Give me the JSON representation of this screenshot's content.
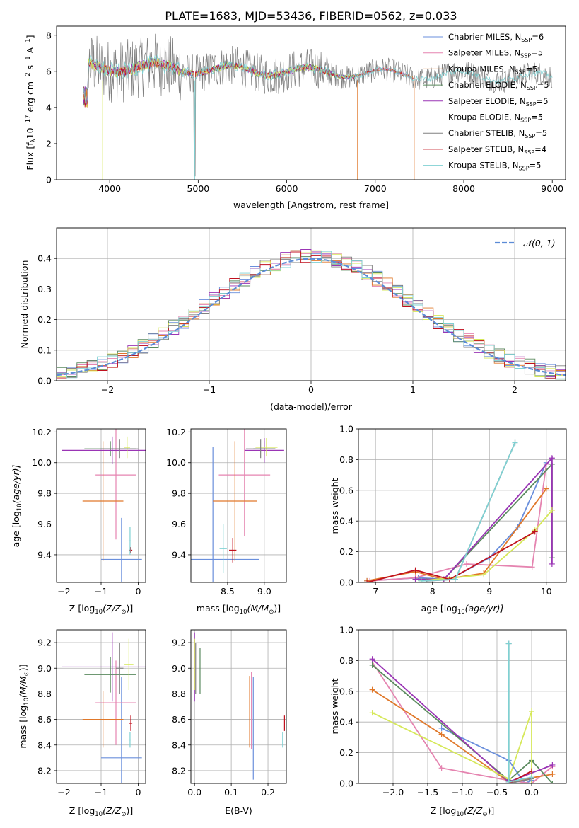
{
  "figure_title": "PLATE=1683, MJD=53436, FIBERID=0562, z=0.033",
  "colors": {
    "chabrier_miles": "#6a8fdc",
    "salpeter_miles": "#e584b0",
    "kroupa_miles": "#e0782a",
    "chabrier_elodie": "#5a8a5e",
    "salpeter_elodie": "#9a35b5",
    "kroupa_elodie": "#d6e85a",
    "chabrier_stelib": "#808080",
    "salpeter_stelib": "#c0111e",
    "kroupa_stelib": "#7fd1d3"
  },
  "chart_data": [
    {
      "id": "spectrum",
      "type": "line",
      "xlabel": "wavelength [Angstrom, rest frame]",
      "ylabel_main": "Flux [f",
      "ylabel_sub": "λ",
      "ylabel_rest": "10",
      "ylabel_exp1": "−17",
      "ylabel_mid": " erg cm",
      "ylabel_exp2": "−2",
      "ylabel_mid2": " s",
      "ylabel_exp3": "−1",
      "ylabel_mid3": " A",
      "ylabel_exp4": "−1",
      "ylabel_end": "]",
      "xlim": [
        3400,
        9150
      ],
      "ylim": [
        0,
        8.5
      ],
      "xticks": [
        4000,
        5000,
        6000,
        7000,
        8000,
        9000
      ],
      "yticks": [
        0,
        2,
        4,
        6,
        8
      ],
      "grid": false,
      "legend_position": "upper-right",
      "series": [
        {
          "name": "Chabrier MILES, N",
          "sub": "SSP",
          "n": "=6",
          "color_key": "chabrier_miles"
        },
        {
          "name": "Salpeter MILES, N",
          "sub": "SSP",
          "n": "=5",
          "color_key": "salpeter_miles"
        },
        {
          "name": "Kroupa MILES, N",
          "sub": "SSP",
          "n": "=5",
          "color_key": "kroupa_miles"
        },
        {
          "name": "Chabrier ELODIE, N",
          "sub": "SSP",
          "n": "=5",
          "color_key": "chabrier_elodie"
        },
        {
          "name": "Salpeter ELODIE, N",
          "sub": "SSP",
          "n": "=5",
          "color_key": "salpeter_elodie"
        },
        {
          "name": "Kroupa ELODIE, N",
          "sub": "SSP",
          "n": "=5",
          "color_key": "kroupa_elodie"
        },
        {
          "name": "Chabrier STELIB, N",
          "sub": "SSP",
          "n": "=5",
          "color_key": "chabrier_stelib"
        },
        {
          "name": "Salpeter STELIB, N",
          "sub": "SSP",
          "n": "=4",
          "color_key": "salpeter_stelib"
        },
        {
          "name": "Kroupa STELIB, N",
          "sub": "SSP",
          "n": "=5",
          "color_key": "kroupa_stelib"
        }
      ]
    },
    {
      "id": "residuals",
      "type": "line",
      "xlabel": "(data-model)/error",
      "ylabel": "Normed distribution",
      "xlim": [
        -2.5,
        2.5
      ],
      "ylim": [
        0,
        0.5
      ],
      "xticks": [
        -2,
        -1,
        0,
        1,
        2
      ],
      "yticks": [
        0.0,
        0.1,
        0.2,
        0.3,
        0.4
      ],
      "grid": true,
      "legend_position": "upper-right",
      "legend_label": "𝒩(0, 1)",
      "gaussian_sigma": 1,
      "hist_bin_width": 0.1
    },
    {
      "id": "age_vs_z",
      "type": "scatter",
      "xlabel": "Z [log",
      "xlabel_sub": "10",
      "xlabel_end": "(Z/Z",
      "xlabel_sun": "⊙",
      "xlabel_close": ")]",
      "ylabel": "age  [log",
      "ylabel_sub": "10",
      "ylabel_end": "(age/yr)]",
      "xlim": [
        -2.2,
        0.2
      ],
      "ylim": [
        9.22,
        10.22
      ],
      "xticks": [
        -2,
        -1,
        0
      ],
      "yticks": [
        9.4,
        9.6,
        9.8,
        10.0,
        10.2
      ],
      "grid": true,
      "points": [
        {
          "color_key": "chabrier_miles",
          "x": -0.45,
          "xerr": 0.55,
          "y": 9.37,
          "yerr": 0.27
        },
        {
          "color_key": "salpeter_miles",
          "x": -0.6,
          "xerr": 0.55,
          "y": 9.92,
          "yerr": 0.42
        },
        {
          "color_key": "kroupa_miles",
          "x": -0.95,
          "xerr": 0.55,
          "y": 9.75,
          "yerr": 0.39
        },
        {
          "color_key": "chabrier_elodie",
          "x": -0.75,
          "xerr": 0.7,
          "y": 10.09,
          "yerr": 0.05
        },
        {
          "color_key": "salpeter_elodie",
          "x": -0.7,
          "xerr": 1.35,
          "y": 10.08,
          "yerr": 0.09
        },
        {
          "color_key": "kroupa_elodie",
          "x": -0.3,
          "xerr": 0.08,
          "y": 10.1,
          "yerr": 0.07
        },
        {
          "color_key": "chabrier_stelib",
          "x": -0.5,
          "xerr": 0.5,
          "y": 10.09,
          "yerr": 0.06
        },
        {
          "color_key": "salpeter_stelib",
          "x": -0.2,
          "xerr": 0.04,
          "y": 9.43,
          "yerr": 0.02
        },
        {
          "color_key": "kroupa_stelib",
          "x": -0.22,
          "xerr": 0.04,
          "y": 9.49,
          "yerr": 0.09
        }
      ]
    },
    {
      "id": "age_vs_mass",
      "type": "scatter",
      "xlabel": "mass [log",
      "xlabel_sub": "10",
      "xlabel_end": "(M/M",
      "xlabel_sun": "⊙",
      "xlabel_close": ")]",
      "xlim": [
        8.0,
        9.3
      ],
      "ylim": [
        9.22,
        10.22
      ],
      "xticks": [
        8.5,
        9.0
      ],
      "yticks": [
        9.4,
        9.6,
        9.8,
        10.0,
        10.2
      ],
      "grid": true,
      "points": [
        {
          "color_key": "chabrier_miles",
          "x": 8.3,
          "xerr": 0.63,
          "y": 9.37,
          "yerr": 0.73
        },
        {
          "color_key": "salpeter_miles",
          "x": 8.73,
          "xerr": 0.35,
          "y": 9.92,
          "yerr": 0.4
        },
        {
          "color_key": "kroupa_miles",
          "x": 8.6,
          "xerr": 0.3,
          "y": 9.75,
          "yerr": 0.39
        },
        {
          "color_key": "chabrier_elodie",
          "x": 9.0,
          "xerr": 0.15,
          "y": 10.09,
          "yerr": 0.05
        },
        {
          "color_key": "salpeter_elodie",
          "x": 9.0,
          "xerr": 0.27,
          "y": 10.08,
          "yerr": 0.08
        },
        {
          "color_key": "kroupa_elodie",
          "x": 9.03,
          "xerr": 0.15,
          "y": 10.1,
          "yerr": 0.06
        },
        {
          "color_key": "chabrier_stelib",
          "x": 8.95,
          "xerr": 0.2,
          "y": 10.09,
          "yerr": 0.06
        },
        {
          "color_key": "salpeter_stelib",
          "x": 8.57,
          "xerr": 0.05,
          "y": 9.43,
          "yerr": 0.08
        },
        {
          "color_key": "kroupa_stelib",
          "x": 8.44,
          "xerr": 0.05,
          "y": 9.44,
          "yerr": 0.16
        }
      ]
    },
    {
      "id": "weight_vs_age",
      "type": "line",
      "xlabel": "age  [log",
      "xlabel_sub": "10",
      "xlabel_end": "(age/yr)]",
      "ylabel": "mass weight",
      "xlim": [
        6.7,
        10.35
      ],
      "ylim": [
        0,
        1
      ],
      "xticks": [
        7,
        8,
        9,
        10
      ],
      "yticks": [
        0.0,
        0.2,
        0.4,
        0.6,
        0.8,
        1.0
      ],
      "grid": true,
      "series": [
        {
          "color_key": "chabrier_miles",
          "points": [
            [
              6.85,
              0.01
            ],
            [
              7.75,
              0.03
            ],
            [
              8.3,
              0.02
            ],
            [
              9.0,
              0.16
            ],
            [
              9.5,
              0.36
            ],
            [
              10.0,
              0.78
            ]
          ]
        },
        {
          "color_key": "salpeter_miles",
          "points": [
            [
              6.9,
              0.01
            ],
            [
              7.7,
              0.03
            ],
            [
              8.6,
              0.12
            ],
            [
              9.75,
              0.1
            ],
            [
              10.0,
              0.77
            ]
          ]
        },
        {
          "color_key": "kroupa_miles",
          "points": [
            [
              6.85,
              0.01
            ],
            [
              7.7,
              0.07
            ],
            [
              8.2,
              0.02
            ],
            [
              8.9,
              0.06
            ],
            [
              10.0,
              0.61
            ]
          ]
        },
        {
          "color_key": "chabrier_elodie",
          "points": [
            [
              7.7,
              0.02
            ],
            [
              8.2,
              0.02
            ],
            [
              10.1,
              0.77
            ],
            [
              10.1,
              0.16
            ]
          ]
        },
        {
          "color_key": "salpeter_elodie",
          "points": [
            [
              7.7,
              0.02
            ],
            [
              8.2,
              0.02
            ],
            [
              10.1,
              0.81
            ],
            [
              10.1,
              0.12
            ]
          ]
        },
        {
          "color_key": "kroupa_elodie",
          "points": [
            [
              7.8,
              0.01
            ],
            [
              8.9,
              0.05
            ],
            [
              9.8,
              0.34
            ],
            [
              10.1,
              0.47
            ]
          ]
        },
        {
          "color_key": "chabrier_stelib",
          "points": [
            [
              7.9,
              0.01
            ],
            [
              8.4,
              0.02
            ],
            [
              9.45,
              0.91
            ]
          ]
        },
        {
          "color_key": "salpeter_stelib",
          "points": [
            [
              6.85,
              0.0
            ],
            [
              7.7,
              0.08
            ],
            [
              8.3,
              0.02
            ],
            [
              9.8,
              0.33
            ]
          ]
        },
        {
          "color_key": "kroupa_stelib",
          "points": [
            [
              7.8,
              0.01
            ],
            [
              8.4,
              0.02
            ],
            [
              9.45,
              0.91
            ]
          ]
        }
      ]
    },
    {
      "id": "mass_vs_z",
      "type": "scatter",
      "xlabel": "Z [log",
      "xlabel_sub": "10",
      "xlabel_end": "(Z/Z",
      "xlabel_sun": "⊙",
      "xlabel_close": ")]",
      "ylabel": "mass [log",
      "ylabel_sub": "10",
      "ylabel_end": "(M/M",
      "ylabel_sun": "⊙",
      "ylabel_close": ")]",
      "xlim": [
        -2.2,
        0.2
      ],
      "ylim": [
        8.1,
        9.3
      ],
      "xticks": [
        -2,
        -1,
        0
      ],
      "yticks": [
        8.2,
        8.4,
        8.6,
        8.8,
        9.0,
        9.2
      ],
      "grid": true,
      "points": [
        {
          "color_key": "chabrier_miles",
          "x": -0.45,
          "xerr": 0.55,
          "y": 8.3,
          "yerr": 0.63
        },
        {
          "color_key": "salpeter_miles",
          "x": -0.6,
          "xerr": 0.55,
          "y": 8.73,
          "yerr": 0.33
        },
        {
          "color_key": "kroupa_miles",
          "x": -0.95,
          "xerr": 0.55,
          "y": 8.6,
          "yerr": 0.22
        },
        {
          "color_key": "chabrier_elodie",
          "x": -0.75,
          "xerr": 0.7,
          "y": 8.95,
          "yerr": 0.14
        },
        {
          "color_key": "salpeter_elodie",
          "x": -0.7,
          "xerr": 1.35,
          "y": 9.01,
          "yerr": 0.27
        },
        {
          "color_key": "kroupa_elodie",
          "x": -0.25,
          "xerr": 0.12,
          "y": 9.03,
          "yerr": 0.2
        },
        {
          "color_key": "chabrier_stelib",
          "x": -0.5,
          "xerr": 0.1,
          "y": 9.0,
          "yerr": 0.2
        },
        {
          "color_key": "salpeter_stelib",
          "x": -0.2,
          "xerr": 0.04,
          "y": 8.57,
          "yerr": 0.06
        },
        {
          "color_key": "kroupa_stelib",
          "x": -0.22,
          "xerr": 0.04,
          "y": 8.44,
          "yerr": 0.06
        }
      ]
    },
    {
      "id": "mass_vs_ebv",
      "type": "scatter",
      "xlabel": "E(B-V)",
      "xlim": [
        -0.01,
        0.25
      ],
      "ylim": [
        8.1,
        9.3
      ],
      "xticks": [
        0.0,
        0.1,
        0.2
      ],
      "yticks": [
        8.2,
        8.4,
        8.6,
        8.8,
        9.0,
        9.2
      ],
      "grid": true,
      "points": [
        {
          "color_key": "chabrier_miles",
          "x": 0.16,
          "xerr": 0,
          "y": 8.53,
          "yerr": 0.4
        },
        {
          "color_key": "salpeter_miles",
          "x": 0.155,
          "xerr": 0,
          "y": 8.67,
          "yerr": 0.3
        },
        {
          "color_key": "kroupa_miles",
          "x": 0.15,
          "xerr": 0,
          "y": 8.66,
          "yerr": 0.28
        },
        {
          "color_key": "chabrier_elodie",
          "x": 0.015,
          "xerr": 0,
          "y": 8.98,
          "yerr": 0.18
        },
        {
          "color_key": "salpeter_elodie",
          "x": 0.0,
          "xerr": 0,
          "y": 9.01,
          "yerr": 0.27
        },
        {
          "color_key": "kroupa_elodie",
          "x": 0.0,
          "xerr": 0,
          "y": 9.03,
          "yerr": 0.2
        },
        {
          "color_key": "chabrier_stelib",
          "x": 0.003,
          "xerr": 0,
          "y": 9.0,
          "yerr": 0.2
        },
        {
          "color_key": "salpeter_stelib",
          "x": 0.245,
          "xerr": 0,
          "y": 8.57,
          "yerr": 0.06
        },
        {
          "color_key": "kroupa_stelib",
          "x": 0.24,
          "xerr": 0,
          "y": 8.44,
          "yerr": 0.06
        }
      ]
    },
    {
      "id": "weight_vs_z",
      "type": "line",
      "xlabel": "Z [log",
      "xlabel_sub": "10",
      "xlabel_end": "(Z/Z",
      "xlabel_sun": "⊙",
      "xlabel_close": ")]",
      "ylabel": "mass weight",
      "xlim": [
        -2.5,
        0.5
      ],
      "ylim": [
        0,
        1
      ],
      "xticks": [
        -2.0,
        -1.5,
        -1.0,
        -0.5,
        0.0
      ],
      "yticks": [
        0.0,
        0.2,
        0.4,
        0.6,
        0.8,
        1.0
      ],
      "grid": true,
      "series": [
        {
          "color_key": "chabrier_miles",
          "points": [
            [
              -1.3,
              0.36
            ],
            [
              -0.33,
              0.15
            ],
            [
              -0.1,
              0.0
            ],
            [
              0.0,
              0.02
            ]
          ]
        },
        {
          "color_key": "salpeter_miles",
          "points": [
            [
              -2.3,
              0.79
            ],
            [
              -1.3,
              0.1
            ],
            [
              -0.33,
              0.02
            ],
            [
              0.0,
              0.0
            ],
            [
              0.3,
              0.11
            ]
          ]
        },
        {
          "color_key": "kroupa_miles",
          "points": [
            [
              -2.3,
              0.61
            ],
            [
              -1.3,
              0.32
            ],
            [
              -0.33,
              0.01
            ],
            [
              0.3,
              0.06
            ]
          ]
        },
        {
          "color_key": "chabrier_elodie",
          "points": [
            [
              -2.3,
              0.77
            ],
            [
              -0.33,
              0.02
            ],
            [
              0.0,
              0.15
            ],
            [
              0.3,
              0.0
            ]
          ]
        },
        {
          "color_key": "salpeter_elodie",
          "points": [
            [
              -2.3,
              0.81
            ],
            [
              -0.33,
              0.01
            ],
            [
              0.3,
              0.12
            ]
          ]
        },
        {
          "color_key": "kroupa_elodie",
          "points": [
            [
              -2.3,
              0.46
            ],
            [
              -0.33,
              0.03
            ],
            [
              0.0,
              0.47
            ],
            [
              0.0,
              0.0
            ]
          ]
        },
        {
          "color_key": "chabrier_stelib",
          "points": [
            [
              -0.33,
              0.91
            ],
            [
              -0.33,
              0.0
            ],
            [
              0.0,
              0.03
            ]
          ]
        },
        {
          "color_key": "salpeter_stelib",
          "points": [
            [
              -0.33,
              0.0
            ],
            [
              0.0,
              0.08
            ]
          ]
        },
        {
          "color_key": "kroupa_stelib",
          "points": [
            [
              -0.33,
              0.91
            ],
            [
              -0.33,
              0.01
            ],
            [
              0.0,
              0.04
            ]
          ]
        }
      ]
    }
  ]
}
